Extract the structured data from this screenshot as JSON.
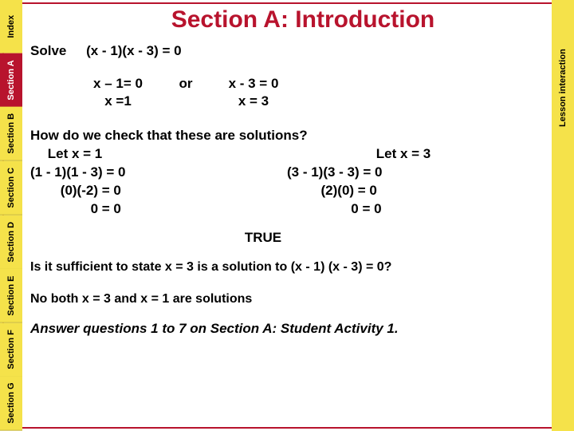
{
  "colors": {
    "brand_red": "#b8132d",
    "tab_yellow": "#f5e24a",
    "text": "#000000",
    "bg": "#ffffff"
  },
  "tabs": {
    "left": [
      {
        "label": "Index",
        "style": "yellow"
      },
      {
        "label": "Section A",
        "style": "red"
      },
      {
        "label": "Section B",
        "style": "yellow"
      },
      {
        "label": "Section C",
        "style": "yellow"
      },
      {
        "label": "Section D",
        "style": "yellow"
      },
      {
        "label": "Section E",
        "style": "yellow"
      },
      {
        "label": "Section F",
        "style": "yellow"
      },
      {
        "label": "Section G",
        "style": "yellow"
      }
    ],
    "right": {
      "label": "Lesson interaction"
    }
  },
  "title": "Section A: Introduction",
  "solve": {
    "label": "Solve",
    "equation": "(x - 1)(x - 3) = 0"
  },
  "cases": {
    "left_top": "x – 1= 0",
    "or": "or",
    "right_top": "x - 3 = 0",
    "left_bot": "x =1",
    "right_bot": "x = 3"
  },
  "check": {
    "question": "How do we check that these are solutions?",
    "left": {
      "let": "Let x = 1",
      "l2": "(1 - 1)(1 - 3) = 0",
      "l3": "(0)(-2) = 0",
      "l4": "0 = 0"
    },
    "right": {
      "let": "Let x = 3",
      "l2": "(3 - 1)(3 - 3) = 0",
      "l3": "(2)(0) = 0",
      "l4": "0 = 0"
    },
    "true": "TRUE"
  },
  "sufficient_q": "Is it sufficient to state x = 3 is a solution to (x - 1) (x - 3) = 0?",
  "sufficient_a": "No both x = 3 and x = 1 are solutions",
  "activity": "Answer questions 1 to 7 on Section A: Student Activity 1."
}
